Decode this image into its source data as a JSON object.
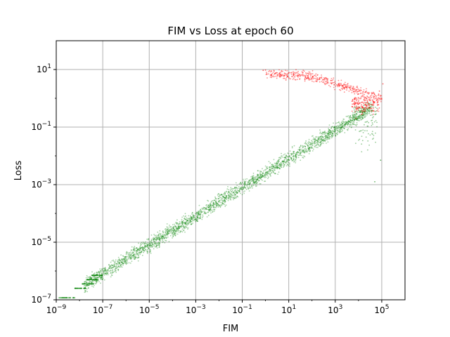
{
  "chart_data": {
    "type": "scatter",
    "title": "FIM vs Loss at epoch 60",
    "xlabel": "FIM",
    "ylabel": "Loss",
    "xscale": "log",
    "yscale": "log",
    "xlim": [
      1e-09,
      1000000.0
    ],
    "ylim": [
      1e-07,
      100
    ],
    "grid": true,
    "x_tick_exponents": [
      -9,
      -7,
      -5,
      -3,
      -1,
      1,
      3,
      5
    ],
    "y_tick_exponents": [
      -7,
      -5,
      -3,
      -1,
      1
    ],
    "colors": {
      "green_series": "#008000",
      "red_series": "#ff0000"
    },
    "series": [
      {
        "color": "green",
        "description_points": [
          [
            1.3e-09,
            1.2e-07
          ],
          [
            3e-09,
            1.2e-07
          ],
          [
            7e-09,
            1.2e-07
          ],
          [
            1e-08,
            2.5e-07
          ],
          [
            2e-08,
            2.5e-07
          ],
          [
            3e-08,
            3.5e-07
          ],
          [
            5e-08,
            5e-07
          ],
          [
            1e-07,
            1e-06
          ],
          [
            1e-06,
            5e-06
          ],
          [
            1e-05,
            1.5e-05
          ],
          [
            0.0001,
            5e-05
          ],
          [
            0.001,
            0.00015
          ],
          [
            0.01,
            0.0005
          ],
          [
            0.1,
            0.0015
          ],
          [
            1,
            0.005
          ],
          [
            10,
            0.015
          ],
          [
            100,
            0.05
          ],
          [
            1000,
            0.15
          ],
          [
            10000,
            0.5
          ],
          [
            50000,
            0.5
          ],
          [
            40000,
            0.05
          ],
          [
            30000,
            0.01
          ],
          [
            50000,
            0.001
          ]
        ]
      },
      {
        "color": "red",
        "description_points": [
          [
            3.0,
            8
          ],
          [
            10.0,
            8
          ],
          [
            100.0,
            6
          ],
          [
            300.0,
            5
          ],
          [
            1000.0,
            4
          ],
          [
            3000.0,
            3
          ],
          [
            10000.0,
            2
          ],
          [
            30000.0,
            1.5
          ],
          [
            50000.0,
            1
          ],
          [
            100000.0,
            0.8
          ],
          [
            120000.0,
            3
          ],
          [
            80000.0,
            0.7
          ]
        ]
      }
    ]
  }
}
